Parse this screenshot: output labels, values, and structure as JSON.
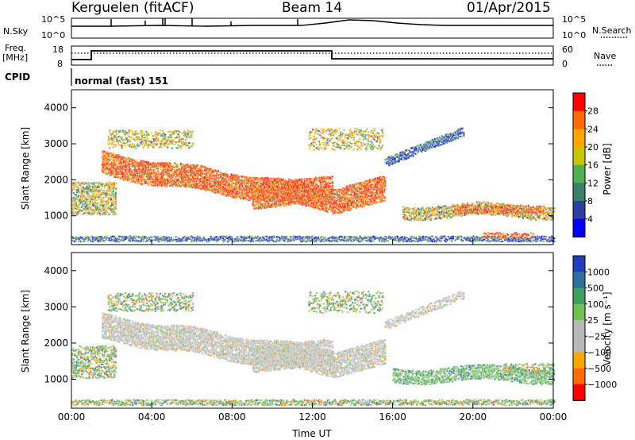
{
  "header": {
    "station": "Kerguelen (fitACF)",
    "beam": "Beam 14",
    "date": "01/Apr/2015"
  },
  "top_panels": {
    "nsky_label": "N.Sky",
    "nsky_ticks": [
      "10^5",
      "10^0"
    ],
    "nsearch_label": "N.Search",
    "freq_label": "Freq.",
    "freq_unit": "[MHz]",
    "freq_ticks": [
      "18",
      "8"
    ],
    "nave_label": "Nave",
    "nave_ticks": [
      "60",
      "0"
    ],
    "cpid_label": "CPID",
    "cpid_value": "normal (fast) 151"
  },
  "chart_data": [
    {
      "type": "heatmap",
      "name": "power",
      "ylabel": "Slant Range [km]",
      "yticks": [
        "4000",
        "3000",
        "2000",
        "1000"
      ],
      "ylim": [
        200,
        4500
      ],
      "colorbar": {
        "label": "Power [dB]",
        "ticks": [
          "28",
          "24",
          "20",
          "16",
          "12",
          "8",
          "4"
        ],
        "colors": [
          "#ff0000",
          "#ff6a00",
          "#ffa500",
          "#c8c800",
          "#4fb04f",
          "#3a7f6a",
          "#2c3fa0",
          "#0000ff"
        ]
      }
    },
    {
      "type": "heatmap",
      "name": "velocity",
      "ylabel": "Slant Range [km]",
      "yticks": [
        "4000",
        "3000",
        "2000",
        "1000"
      ],
      "ylim": [
        200,
        4500
      ],
      "xlabel": "Time UT",
      "xticks": [
        "00:00",
        "04:00",
        "08:00",
        "12:00",
        "16:00",
        "20:00",
        "00:00"
      ],
      "colorbar": {
        "label": "Velocity [m s⁻¹]",
        "ticks": [
          "1000",
          "500",
          "100",
          "25",
          "−25",
          "−100",
          "−500",
          "−1000"
        ],
        "colors": [
          "#1f3fbf",
          "#2e6f9f",
          "#3f9f5f",
          "#6fc04f",
          "#b8b8b8",
          "#b8b8b8",
          "#ffa500",
          "#ff6a00",
          "#ff0000"
        ]
      }
    }
  ]
}
